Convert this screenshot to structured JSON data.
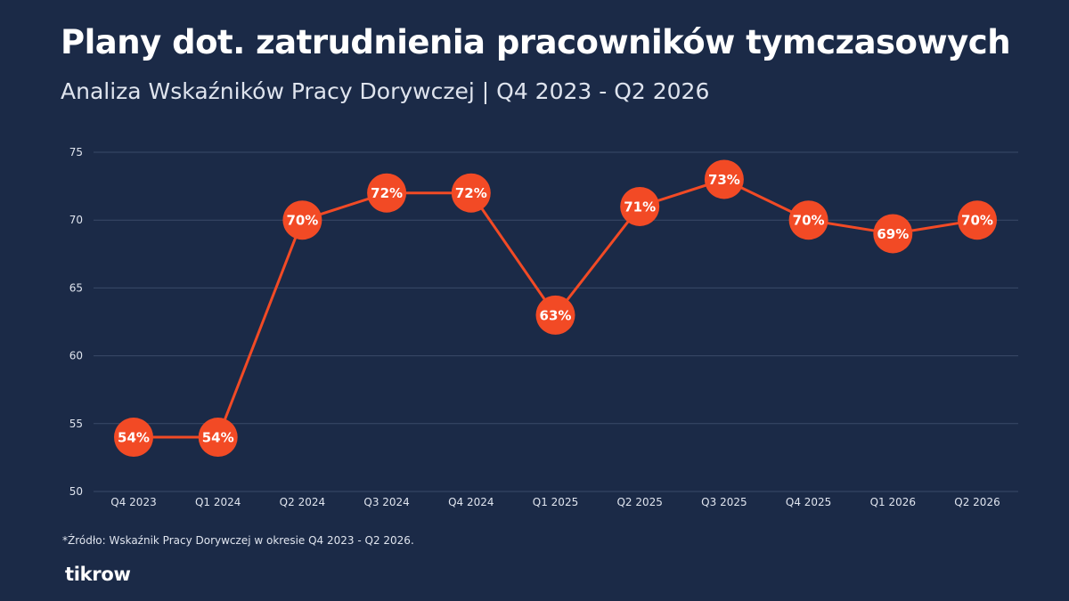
{
  "header": {
    "title": "Plany dot. zatrudnienia pracowników tymczasowych",
    "subtitle": "Analiza Wskaźników Pracy Dorywczej | Q4 2023 - Q2 2026"
  },
  "footnote": "*Źródło: Wskaźnik Pracy Dorywczej w okresie Q4 2023 - Q2 2026.",
  "brand": "tikrow",
  "colors": {
    "background": "#1b2a47",
    "series": "#f24a25",
    "grid": "#3a4a68"
  },
  "chart_data": {
    "type": "line",
    "categories": [
      "Q4 2023",
      "Q1 2024",
      "Q2 2024",
      "Q3 2024",
      "Q4 2024",
      "Q1 2025",
      "Q2 2025",
      "Q3 2025",
      "Q4 2025",
      "Q1 2026",
      "Q2 2026"
    ],
    "series": [
      {
        "values": [
          54,
          54,
          70,
          72,
          72,
          63,
          71,
          73,
          70,
          69,
          70
        ],
        "labels": [
          "54%",
          "54%",
          "70%",
          "72%",
          "72%",
          "63%",
          "71%",
          "73%",
          "70%",
          "69%",
          "70%"
        ]
      }
    ],
    "yticks": [
      50,
      55,
      60,
      65,
      70,
      75
    ],
    "ylim": [
      50,
      75
    ],
    "grid": true,
    "legend": "none"
  }
}
